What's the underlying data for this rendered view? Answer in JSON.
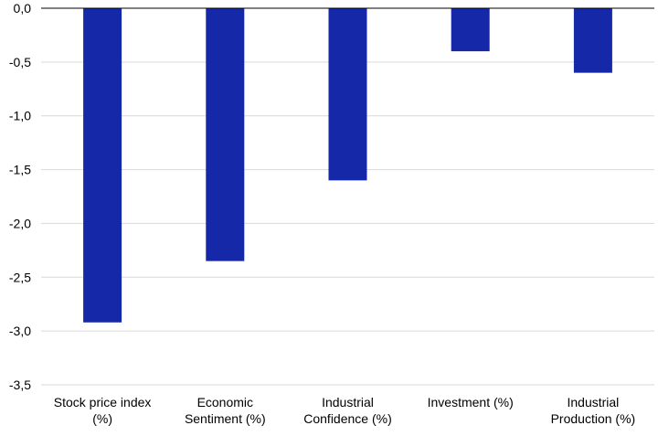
{
  "chart_data": {
    "type": "bar",
    "categories": [
      [
        "Stock price index",
        "(%)"
      ],
      [
        "Economic",
        "Sentiment (%)"
      ],
      [
        "Industrial",
        "Confidence (%)"
      ],
      [
        "Investment (%)"
      ],
      [
        "Industrial",
        "Production (%)"
      ]
    ],
    "values": [
      -2.92,
      -2.35,
      -1.6,
      -0.4,
      -0.6
    ],
    "ylim": [
      -3.5,
      0.0
    ],
    "yticks": [
      0.0,
      -0.5,
      -1.0,
      -1.5,
      -2.0,
      -2.5,
      -3.0,
      -3.5
    ],
    "ytick_labels": [
      "0,0",
      "-0,5",
      "-1,0",
      "-1,5",
      "-2,0",
      "-2,5",
      "-3,0",
      "-3,5"
    ],
    "title": "",
    "xlabel": "",
    "ylabel": "",
    "grid": true,
    "legend": "none",
    "colors": {
      "bar": "#1428a8",
      "grid": "#d9d9d9",
      "axis": "#000000"
    }
  }
}
